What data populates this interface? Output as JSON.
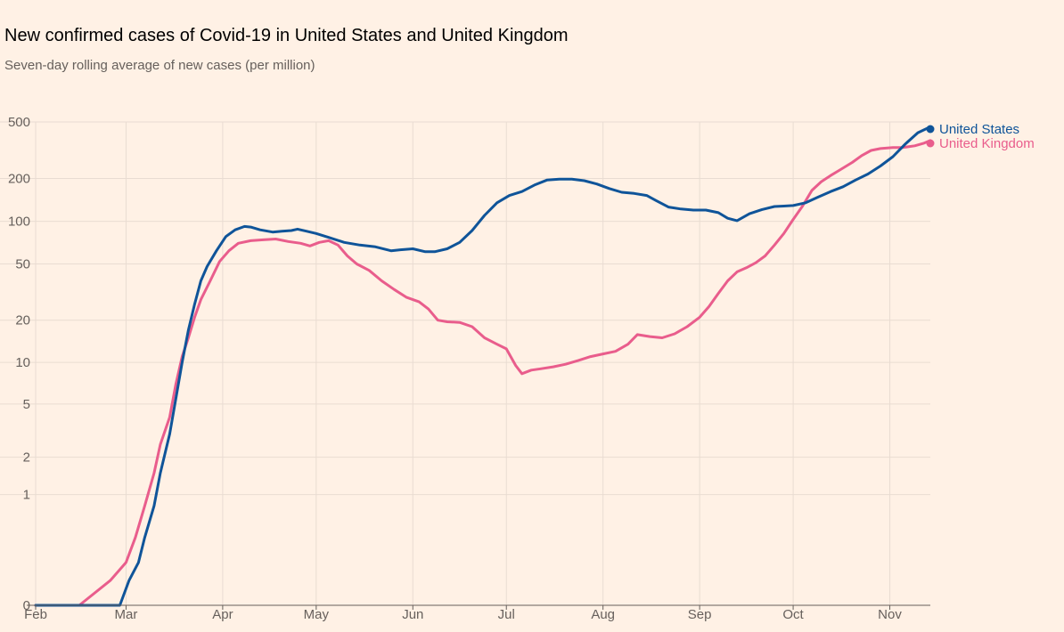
{
  "chart_data": {
    "type": "line",
    "title": "New confirmed cases of Covid-19 in United States and United Kingdom",
    "subtitle": "Seven-day rolling average of new cases (per million)",
    "y_scale": "symlog",
    "ylim": [
      0,
      500
    ],
    "y_ticks": [
      {
        "value": 0,
        "label": "0"
      },
      {
        "value": 1,
        "label": "1"
      },
      {
        "value": 2,
        "label": "2"
      },
      {
        "value": 5,
        "label": "5"
      },
      {
        "value": 10,
        "label": "10"
      },
      {
        "value": 20,
        "label": "20"
      },
      {
        "value": 50,
        "label": "50"
      },
      {
        "value": 100,
        "label": "100"
      },
      {
        "value": 200,
        "label": "200"
      },
      {
        "value": 500,
        "label": "500"
      }
    ],
    "x_ticks": [
      {
        "date": "2020-02-01",
        "label": "Feb"
      },
      {
        "date": "2020-03-01",
        "label": "Mar"
      },
      {
        "date": "2020-04-01",
        "label": "Apr"
      },
      {
        "date": "2020-05-01",
        "label": "May"
      },
      {
        "date": "2020-06-01",
        "label": "Jun"
      },
      {
        "date": "2020-07-01",
        "label": "Jul"
      },
      {
        "date": "2020-08-01",
        "label": "Aug"
      },
      {
        "date": "2020-09-01",
        "label": "Sep"
      },
      {
        "date": "2020-10-01",
        "label": "Oct"
      },
      {
        "date": "2020-11-01",
        "label": "Nov"
      }
    ],
    "x_range": [
      "2020-02-01",
      "2020-11-16"
    ],
    "grid": true,
    "legend": "end-of-line labels, top-right",
    "series": [
      {
        "name": "United States",
        "color": "#0F5499",
        "points": [
          [
            "2020-02-01",
            0
          ],
          [
            "2020-02-28",
            0
          ],
          [
            "2020-03-02",
            0.1
          ],
          [
            "2020-03-05",
            0.2
          ],
          [
            "2020-03-07",
            0.4
          ],
          [
            "2020-03-10",
            0.8
          ],
          [
            "2020-03-12",
            1.5
          ],
          [
            "2020-03-15",
            3
          ],
          [
            "2020-03-17",
            5.5
          ],
          [
            "2020-03-19",
            10
          ],
          [
            "2020-03-21",
            17
          ],
          [
            "2020-03-23",
            26
          ],
          [
            "2020-03-25",
            38
          ],
          [
            "2020-03-27",
            48
          ],
          [
            "2020-03-30",
            62
          ],
          [
            "2020-04-02",
            78
          ],
          [
            "2020-04-05",
            87
          ],
          [
            "2020-04-08",
            92
          ],
          [
            "2020-04-10",
            91
          ],
          [
            "2020-04-13",
            87
          ],
          [
            "2020-04-17",
            84
          ],
          [
            "2020-04-20",
            85
          ],
          [
            "2020-04-23",
            86
          ],
          [
            "2020-04-25",
            88
          ],
          [
            "2020-04-28",
            85
          ],
          [
            "2020-05-01",
            82
          ],
          [
            "2020-05-05",
            77
          ],
          [
            "2020-05-10",
            71
          ],
          [
            "2020-05-15",
            68
          ],
          [
            "2020-05-20",
            66
          ],
          [
            "2020-05-25",
            62
          ],
          [
            "2020-05-28",
            63
          ],
          [
            "2020-06-01",
            64
          ],
          [
            "2020-06-05",
            61
          ],
          [
            "2020-06-08",
            61
          ],
          [
            "2020-06-12",
            64
          ],
          [
            "2020-06-16",
            71
          ],
          [
            "2020-06-20",
            86
          ],
          [
            "2020-06-24",
            110
          ],
          [
            "2020-06-28",
            135
          ],
          [
            "2020-07-02",
            152
          ],
          [
            "2020-07-06",
            162
          ],
          [
            "2020-07-10",
            180
          ],
          [
            "2020-07-14",
            195
          ],
          [
            "2020-07-18",
            198
          ],
          [
            "2020-07-22",
            198
          ],
          [
            "2020-07-26",
            193
          ],
          [
            "2020-07-30",
            183
          ],
          [
            "2020-08-03",
            170
          ],
          [
            "2020-08-07",
            160
          ],
          [
            "2020-08-11",
            157
          ],
          [
            "2020-08-15",
            152
          ],
          [
            "2020-08-18",
            140
          ],
          [
            "2020-08-22",
            126
          ],
          [
            "2020-08-26",
            122
          ],
          [
            "2020-08-30",
            120
          ],
          [
            "2020-09-03",
            120
          ],
          [
            "2020-09-07",
            115
          ],
          [
            "2020-09-10",
            105
          ],
          [
            "2020-09-13",
            101
          ],
          [
            "2020-09-17",
            113
          ],
          [
            "2020-09-21",
            121
          ],
          [
            "2020-09-25",
            127
          ],
          [
            "2020-09-28",
            128
          ],
          [
            "2020-10-01",
            129
          ],
          [
            "2020-10-05",
            135
          ],
          [
            "2020-10-09",
            148
          ],
          [
            "2020-10-13",
            162
          ],
          [
            "2020-10-17",
            175
          ],
          [
            "2020-10-21",
            195
          ],
          [
            "2020-10-25",
            215
          ],
          [
            "2020-10-29",
            245
          ],
          [
            "2020-11-02",
            285
          ],
          [
            "2020-11-06",
            350
          ],
          [
            "2020-11-10",
            420
          ],
          [
            "2020-11-14",
            462
          ]
        ]
      },
      {
        "name": "United Kingdom",
        "color": "#E95D8C",
        "points": [
          [
            "2020-02-01",
            0
          ],
          [
            "2020-02-15",
            0
          ],
          [
            "2020-02-25",
            0.1
          ],
          [
            "2020-03-01",
            0.2
          ],
          [
            "2020-03-04",
            0.4
          ],
          [
            "2020-03-07",
            0.8
          ],
          [
            "2020-03-10",
            1.5
          ],
          [
            "2020-03-12",
            2.5
          ],
          [
            "2020-03-15",
            4
          ],
          [
            "2020-03-17",
            7
          ],
          [
            "2020-03-19",
            11
          ],
          [
            "2020-03-21",
            15
          ],
          [
            "2020-03-23",
            21
          ],
          [
            "2020-03-25",
            28
          ],
          [
            "2020-03-28",
            38
          ],
          [
            "2020-03-31",
            52
          ],
          [
            "2020-04-03",
            62
          ],
          [
            "2020-04-06",
            70
          ],
          [
            "2020-04-10",
            73
          ],
          [
            "2020-04-14",
            74
          ],
          [
            "2020-04-18",
            75
          ],
          [
            "2020-04-22",
            72
          ],
          [
            "2020-04-26",
            70
          ],
          [
            "2020-04-29",
            67
          ],
          [
            "2020-05-02",
            71
          ],
          [
            "2020-05-05",
            73
          ],
          [
            "2020-05-08",
            68
          ],
          [
            "2020-05-11",
            57
          ],
          [
            "2020-05-14",
            50
          ],
          [
            "2020-05-18",
            45
          ],
          [
            "2020-05-22",
            38
          ],
          [
            "2020-05-26",
            33
          ],
          [
            "2020-05-30",
            29
          ],
          [
            "2020-06-03",
            27
          ],
          [
            "2020-06-06",
            24
          ],
          [
            "2020-06-09",
            20
          ],
          [
            "2020-06-12",
            19.5
          ],
          [
            "2020-06-16",
            19.3
          ],
          [
            "2020-06-20",
            18
          ],
          [
            "2020-06-24",
            15
          ],
          [
            "2020-06-28",
            13.5
          ],
          [
            "2020-07-01",
            12.5
          ],
          [
            "2020-07-04",
            9.5
          ],
          [
            "2020-07-06",
            8.3
          ],
          [
            "2020-07-09",
            8.8
          ],
          [
            "2020-07-12",
            9
          ],
          [
            "2020-07-16",
            9.3
          ],
          [
            "2020-07-20",
            9.7
          ],
          [
            "2020-07-24",
            10.3
          ],
          [
            "2020-07-28",
            11
          ],
          [
            "2020-08-01",
            11.5
          ],
          [
            "2020-08-05",
            12
          ],
          [
            "2020-08-09",
            13.5
          ],
          [
            "2020-08-12",
            15.8
          ],
          [
            "2020-08-16",
            15.3
          ],
          [
            "2020-08-20",
            15
          ],
          [
            "2020-08-24",
            16
          ],
          [
            "2020-08-28",
            18
          ],
          [
            "2020-09-01",
            21
          ],
          [
            "2020-09-04",
            25
          ],
          [
            "2020-09-07",
            31
          ],
          [
            "2020-09-10",
            38
          ],
          [
            "2020-09-13",
            44
          ],
          [
            "2020-09-16",
            47
          ],
          [
            "2020-09-19",
            51
          ],
          [
            "2020-09-22",
            57
          ],
          [
            "2020-09-25",
            68
          ],
          [
            "2020-09-28",
            82
          ],
          [
            "2020-10-01",
            103
          ],
          [
            "2020-10-04",
            128
          ],
          [
            "2020-10-07",
            165
          ],
          [
            "2020-10-10",
            190
          ],
          [
            "2020-10-13",
            210
          ],
          [
            "2020-10-16",
            230
          ],
          [
            "2020-10-20",
            260
          ],
          [
            "2020-10-23",
            290
          ],
          [
            "2020-10-26",
            315
          ],
          [
            "2020-10-29",
            325
          ],
          [
            "2020-11-02",
            330
          ],
          [
            "2020-11-05",
            330
          ],
          [
            "2020-11-09",
            340
          ],
          [
            "2020-11-12",
            355
          ],
          [
            "2020-11-14",
            370
          ]
        ]
      }
    ]
  }
}
